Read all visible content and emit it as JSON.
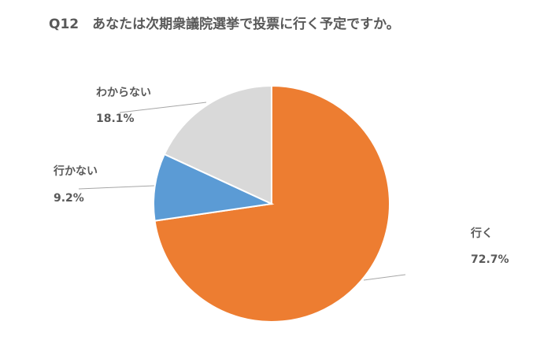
{
  "chart_data": {
    "type": "pie",
    "title": "Q12　あなたは次期衆議院選挙で投票に行く予定ですか。",
    "categories": [
      "行く",
      "行かない",
      "わからない"
    ],
    "values": [
      72.7,
      9.2,
      18.1
    ],
    "value_labels": [
      "72.7%",
      "9.2%",
      "18.1%"
    ],
    "colors": [
      "#ed7d31",
      "#5b9bd5",
      "#d9d9d9"
    ]
  }
}
